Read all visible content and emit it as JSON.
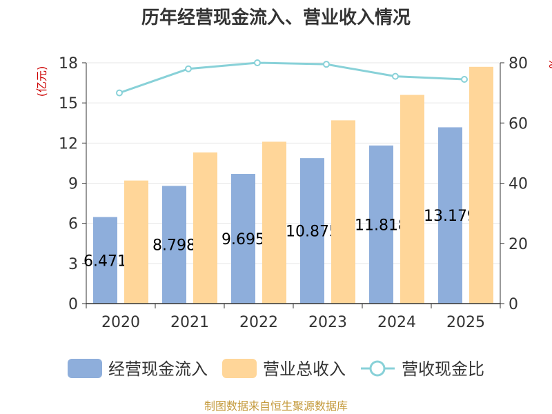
{
  "chart_data": {
    "type": "bar",
    "title": "历年经营现金流入、营业收入情况",
    "categories": [
      "2020",
      "2021",
      "2022",
      "2023",
      "2024",
      "2025"
    ],
    "series": [
      {
        "name": "经营现金流入",
        "kind": "bar",
        "axis": "left",
        "color": "#8eaedb",
        "values": [
          6.471,
          8.798,
          9.695,
          10.875,
          11.818,
          13.179
        ]
      },
      {
        "name": "营业总收入",
        "kind": "bar",
        "axis": "left",
        "color": "#ffd699",
        "values": [
          9.2,
          11.3,
          12.1,
          13.7,
          15.6,
          17.7
        ]
      },
      {
        "name": "营收现金比",
        "kind": "line",
        "axis": "right",
        "color": "#88d1d8",
        "values": [
          70.0,
          78.0,
          80.0,
          79.5,
          75.5,
          74.5
        ]
      }
    ],
    "data_labels": [
      "6.471",
      "8.798",
      "9.695",
      "10.875",
      "11.818",
      "13.179"
    ],
    "ylabel": "(亿元)",
    "ylabel_right": "%",
    "ylim": [
      0,
      18
    ],
    "yticks": [
      0,
      3,
      6,
      9,
      12,
      15,
      18
    ],
    "ylim_right": [
      0,
      80
    ],
    "yticks_right": [
      0,
      20,
      40,
      60,
      80
    ],
    "grid": true,
    "legend_position": "bottom",
    "colors": {
      "left_unit": "#cc0000",
      "source": "#c49a3c",
      "axis": "#333333",
      "grid": "#e6e6e6"
    }
  },
  "footer": {
    "source": "制图数据来自恒生聚源数据库"
  }
}
